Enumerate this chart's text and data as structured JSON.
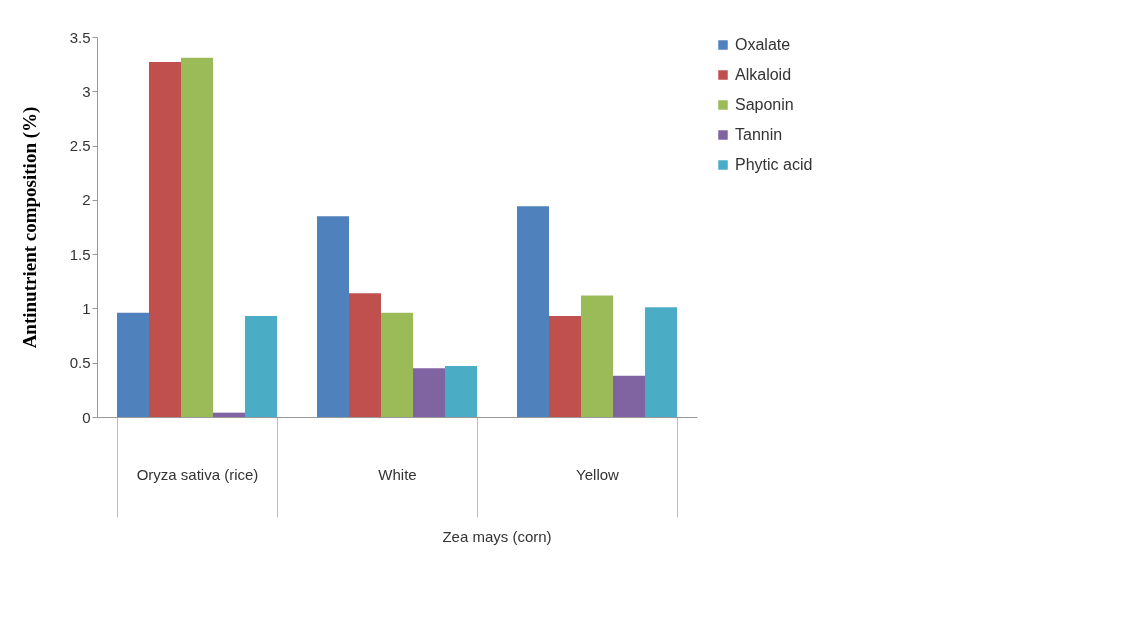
{
  "chart_data": {
    "type": "bar",
    "ylabel": "Antinutrient composition (%)",
    "categories": [
      "Oryza sativa (rice)",
      "White",
      "Yellow"
    ],
    "series": [
      {
        "name": "Oxalate",
        "color": "#4f81bd",
        "values": [
          0.96,
          1.85,
          1.94
        ]
      },
      {
        "name": "Alkaloid",
        "color": "#c0504d",
        "values": [
          3.27,
          1.14,
          0.93
        ]
      },
      {
        "name": "Saponin",
        "color": "#9bbb59",
        "values": [
          3.31,
          0.96,
          1.12
        ]
      },
      {
        "name": "Tannin",
        "color": "#8064a2",
        "values": [
          0.04,
          0.45,
          0.38
        ]
      },
      {
        "name": "Phytic acid",
        "color": "#4bacc6",
        "values": [
          0.93,
          0.47,
          1.01
        ]
      }
    ],
    "ylim": [
      0,
      3.5
    ],
    "yticks": [
      0,
      0.5,
      1,
      1.5,
      2,
      2.5,
      3,
      3.5
    ],
    "legend": "right",
    "grid": false,
    "annotations": [
      "Zea mays (corn)"
    ]
  }
}
